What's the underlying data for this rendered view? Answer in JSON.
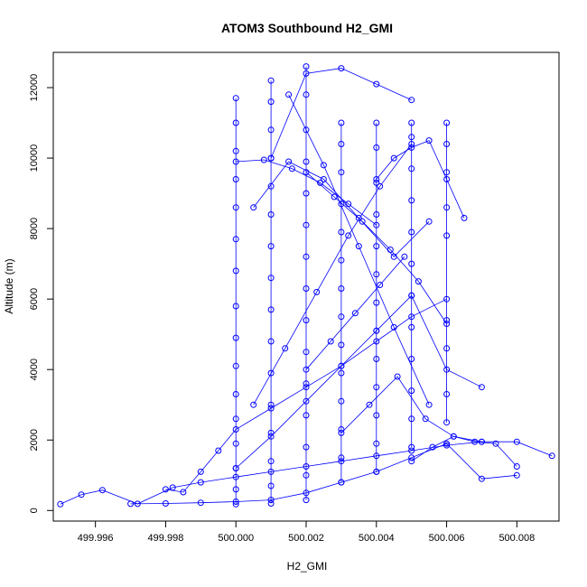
{
  "chart_data": {
    "type": "line",
    "title": "ATOM3 Southbound H2_GMI",
    "xlabel": "H2_GMI",
    "ylabel": "Altitude (m)",
    "xlim": [
      499.9948,
      500.0092
    ],
    "ylim": [
      -300,
      13000
    ],
    "x_ticks": [
      499.996,
      499.998,
      500.0,
      500.002,
      500.004,
      500.006,
      500.008
    ],
    "x_tick_labels": [
      "499.996",
      "499.998",
      "500.000",
      "500.002",
      "500.004",
      "500.006",
      "500.008"
    ],
    "y_ticks": [
      0,
      2000,
      4000,
      6000,
      8000,
      10000,
      12000
    ],
    "y_tick_labels": [
      "0",
      "2000",
      "4000",
      "6000",
      "8000",
      "10000",
      "12000"
    ],
    "marker": "open-circle",
    "series": [
      {
        "color": "#0000ff",
        "profiles": [
          {
            "x": [
              500.0,
              500.0,
              500.0,
              500.0,
              500.0,
              500.0,
              500.0,
              500.0,
              500.0,
              500.0,
              500.0,
              500.0,
              500.0,
              500.0,
              500.0,
              500.0
            ],
            "y": [
              180,
              600,
              1200,
              1900,
              2600,
              3300,
              4100,
              4900,
              5800,
              6800,
              7700,
              8600,
              9400,
              10200,
              11000,
              11700
            ]
          },
          {
            "x": [
              500.001,
              500.001,
              500.001,
              500.001,
              500.001,
              500.001,
              500.001,
              500.001,
              500.001,
              500.001,
              500.001,
              500.001,
              500.001,
              500.001,
              500.001,
              500.001
            ],
            "y": [
              200,
              700,
              1400,
              2200,
              3000,
              3900,
              4800,
              5700,
              6600,
              7500,
              8400,
              9200,
              10000,
              10800,
              11600,
              12200
            ]
          },
          {
            "x": [
              500.002,
              500.002,
              500.002,
              500.002,
              500.002,
              500.002,
              500.002,
              500.002,
              500.002,
              500.002,
              500.002,
              500.002,
              500.002,
              500.002,
              500.002
            ],
            "y": [
              300,
              1000,
              1800,
              2700,
              3600,
              4500,
              5400,
              6300,
              7200,
              8100,
              9000,
              9900,
              10800,
              11800,
              12600
            ]
          },
          {
            "x": [
              500.003,
              500.003,
              500.003,
              500.003,
              500.003,
              500.003,
              500.003,
              500.003,
              500.003,
              500.003,
              500.003,
              500.003,
              500.003,
              500.003
            ],
            "y": [
              800,
              1500,
              2300,
              3100,
              3900,
              4700,
              5500,
              6300,
              7100,
              7900,
              8700,
              9600,
              10400,
              11000
            ]
          },
          {
            "x": [
              500.004,
              500.004,
              500.004,
              500.004,
              500.004,
              500.004,
              500.004,
              500.004,
              500.004,
              500.004,
              500.004,
              500.004,
              500.004
            ],
            "y": [
              1100,
              1900,
              2700,
              3500,
              4300,
              5100,
              5900,
              6700,
              7500,
              8400,
              9300,
              10300,
              11000
            ]
          },
          {
            "x": [
              500.005,
              500.005,
              500.005,
              500.005,
              500.005,
              500.005,
              500.005,
              500.005,
              500.005,
              500.005,
              500.005,
              500.005
            ],
            "y": [
              1800,
              2600,
              3400,
              4300,
              5200,
              6100,
              7000,
              7900,
              8800,
              9700,
              10600,
              11000
            ]
          },
          {
            "x": [
              500.006,
              500.006,
              500.006,
              500.006,
              500.006,
              500.006,
              500.006,
              500.006,
              500.006
            ],
            "y": [
              2500,
              3300,
              4600,
              5400,
              7800,
              8600,
              9600,
              10400,
              11000
            ]
          },
          {
            "x": [
              499.995,
              499.9956,
              499.9962,
              499.9972,
              499.9982,
              499.999,
              500.0,
              500.001,
              500.002,
              500.003,
              500.004,
              500.005,
              500.006,
              500.007,
              500.008,
              500.009
            ],
            "y": [
              180,
              450,
              580,
              190,
              650,
              800,
              950,
              1100,
              1250,
              1400,
              1550,
              1700,
              1850,
              1950,
              1950,
              1550
            ]
          },
          {
            "x": [
              499.997,
              499.998,
              499.999,
              500.0,
              500.001,
              500.002,
              500.003,
              500.004,
              500.005,
              500.006,
              500.007,
              500.008
            ],
            "y": [
              190,
              200,
              220,
              250,
              300,
              500,
              800,
              1100,
              1500,
              1900,
              900,
              1000
            ]
          },
          {
            "x": [
              499.998,
              499.9985,
              499.999,
              499.9995,
              500.0,
              500.001,
              500.002,
              500.003,
              500.004,
              500.005,
              500.006
            ],
            "y": [
              600,
              520,
              1100,
              1700,
              2300,
              2900,
              3500,
              4100,
              4800,
              5500,
              6000
            ]
          },
          {
            "x": [
              500.0,
              500.001,
              500.002,
              500.003,
              500.004,
              500.005,
              500.006,
              500.007
            ],
            "y": [
              1200,
              2100,
              3100,
              4100,
              5100,
              6100,
              4000,
              3500
            ]
          },
          {
            "x": [
              500.0005,
              500.0015,
              500.0025,
              500.0035,
              500.0045,
              500.0055
            ],
            "y": [
              8600,
              9900,
              9400,
              8300,
              7200,
              8200
            ]
          },
          {
            "x": [
              500.001,
              500.002,
              500.003,
              500.004,
              500.005
            ],
            "y": [
              10000,
              12400,
              12550,
              12100,
              11650
            ]
          },
          {
            "x": [
              500.0015,
              500.0025,
              500.0035,
              500.0045,
              500.0055
            ],
            "y": [
              11800,
              9800,
              7500,
              5200,
              3000
            ]
          },
          {
            "x": [
              500.002,
              500.0028,
              500.0036,
              500.0044,
              500.0052,
              500.006
            ],
            "y": [
              9600,
              8900,
              8200,
              7400,
              6500,
              5300
            ]
          },
          {
            "x": [
              500.0005,
              500.0014,
              500.0023,
              500.0032,
              500.0041,
              500.005
            ],
            "y": [
              3000,
              4600,
              6200,
              7800,
              9200,
              10400
            ]
          },
          {
            "x": [
              500.003,
              500.0038,
              500.0046,
              500.0054,
              500.0062,
              500.007
            ],
            "y": [
              2200,
              3000,
              3800,
              2600,
              2100,
              1950
            ]
          },
          {
            "x": [
              500.0,
              500.0008,
              500.0016,
              500.0024,
              500.0032,
              500.004
            ],
            "y": [
              9900,
              9950,
              9700,
              9300,
              8700,
              8100
            ]
          },
          {
            "x": [
              500.004,
              500.0045,
              500.005,
              500.0055,
              500.006,
              500.0065
            ],
            "y": [
              9400,
              10000,
              10300,
              10500,
              9400,
              8300
            ]
          },
          {
            "x": [
              500.002,
              500.0027,
              500.0034,
              500.0041,
              500.0048
            ],
            "y": [
              4000,
              4800,
              5600,
              6400,
              7200
            ]
          },
          {
            "x": [
              500.005,
              500.0056,
              500.0062,
              500.0068,
              500.0074,
              500.008
            ],
            "y": [
              1400,
              1800,
              2100,
              1950,
              1900,
              1250
            ]
          }
        ]
      }
    ],
    "grid": false,
    "legend": "none"
  }
}
